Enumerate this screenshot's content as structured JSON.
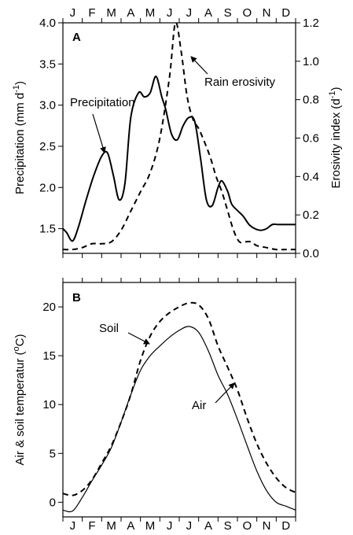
{
  "months": [
    "J",
    "F",
    "M",
    "A",
    "M",
    "J",
    "J",
    "A",
    "S",
    "O",
    "N",
    "D"
  ],
  "chart_data": [
    {
      "type": "line",
      "panel_label": "A",
      "ylabel": "Precipitation (mm d",
      "ylabel_sup": "-1",
      "ylabel_close": ")",
      "ylim": [
        1.2,
        4.0
      ],
      "y_ticks": [
        "1.5",
        "2.0",
        "2.5",
        "3.0",
        "3.5",
        "4.0"
      ],
      "y2label": "Erosivity index (d",
      "y2label_sup": "-1",
      "y2label_close": ")",
      "y2lim": [
        0.0,
        1.2
      ],
      "y2_ticks": [
        "0.0",
        "0.2",
        "0.4",
        "0.6",
        "0.8",
        "1.0",
        "1.2"
      ],
      "xlim": [
        0,
        12
      ],
      "series": [
        {
          "name": "Precipitation",
          "axis": "left",
          "style": "solid",
          "x": [
            0,
            0.2,
            0.5,
            0.8,
            1.2,
            1.6,
            2.0,
            2.3,
            2.6,
            2.9,
            3.2,
            3.5,
            3.9,
            4.2,
            4.5,
            4.8,
            5.1,
            5.3,
            5.6,
            5.9,
            6.2,
            6.5,
            6.8,
            7.1,
            7.4,
            7.7,
            8.0,
            8.2,
            8.5,
            8.7,
            9.0,
            9.3,
            9.6,
            9.9,
            10.2,
            10.5,
            10.8,
            11.1,
            11.4,
            11.7,
            12.0
          ],
          "values": [
            1.5,
            1.45,
            1.35,
            1.52,
            1.85,
            2.15,
            2.38,
            2.42,
            2.15,
            1.85,
            2.05,
            2.85,
            3.15,
            3.1,
            3.15,
            3.35,
            3.1,
            2.95,
            2.65,
            2.58,
            2.75,
            2.85,
            2.8,
            2.35,
            1.85,
            1.78,
            2.0,
            2.08,
            1.95,
            1.8,
            1.72,
            1.65,
            1.55,
            1.5,
            1.48,
            1.5,
            1.55,
            1.55,
            1.55,
            1.55,
            1.55
          ]
        },
        {
          "name": "Rain erosivity",
          "axis": "right",
          "style": "dashed",
          "x": [
            0,
            0.5,
            1.0,
            1.5,
            2.0,
            2.5,
            3.0,
            3.5,
            4.0,
            4.5,
            5.0,
            5.5,
            5.8,
            6.1,
            6.4,
            6.7,
            7.0,
            7.3,
            7.6,
            7.9,
            8.2,
            8.5,
            8.8,
            9.1,
            9.4,
            9.7,
            10.0,
            10.5,
            11.0,
            11.5,
            12.0
          ],
          "values": [
            0.02,
            0.02,
            0.03,
            0.05,
            0.05,
            0.06,
            0.12,
            0.22,
            0.32,
            0.42,
            0.6,
            0.92,
            1.2,
            1.05,
            0.82,
            0.7,
            0.65,
            0.58,
            0.5,
            0.4,
            0.32,
            0.22,
            0.12,
            0.06,
            0.06,
            0.06,
            0.04,
            0.03,
            0.02,
            0.02,
            0.02
          ]
        }
      ],
      "annotations": [
        {
          "text": "Precipitation",
          "points_to": "Precipitation"
        },
        {
          "text": "Rain erosivity",
          "points_to": "Rain erosivity"
        }
      ]
    },
    {
      "type": "line",
      "panel_label": "B",
      "ylabel": "Air & soil temperatur (",
      "ylabel_sup": "o",
      "ylabel_close": "C)",
      "ylim": [
        -1.5,
        22.5
      ],
      "y_ticks": [
        "0",
        "5",
        "10",
        "15",
        "20"
      ],
      "xlim": [
        0,
        12
      ],
      "series": [
        {
          "name": "Soil",
          "style": "dashed",
          "x": [
            0,
            0.5,
            1.0,
            1.5,
            2.0,
            2.5,
            3.0,
            3.5,
            4.0,
            4.5,
            5.0,
            5.5,
            6.0,
            6.5,
            7.0,
            7.5,
            8.0,
            8.5,
            9.0,
            9.5,
            10.0,
            10.5,
            11.0,
            11.5,
            12.0
          ],
          "values": [
            0.9,
            0.7,
            1.2,
            2.3,
            4.0,
            5.8,
            8.2,
            11.0,
            14.5,
            17.0,
            18.5,
            19.4,
            20.0,
            20.4,
            20.2,
            18.8,
            16.0,
            13.8,
            11.5,
            8.6,
            6.0,
            4.0,
            2.5,
            1.5,
            1.0
          ]
        },
        {
          "name": "Air",
          "style": "solid",
          "x": [
            0,
            0.5,
            1.0,
            1.5,
            2.0,
            2.5,
            3.0,
            3.5,
            4.0,
            4.5,
            5.0,
            5.5,
            6.0,
            6.5,
            7.0,
            7.5,
            8.0,
            8.5,
            9.0,
            9.5,
            10.0,
            10.5,
            11.0,
            11.5,
            12.0
          ],
          "values": [
            -0.8,
            -0.9,
            0.5,
            2.2,
            3.8,
            5.6,
            8.2,
            11.0,
            13.5,
            15.0,
            16.0,
            16.9,
            17.6,
            18.0,
            17.4,
            15.5,
            13.0,
            11.0,
            8.5,
            5.8,
            3.2,
            1.2,
            0.0,
            -0.4,
            -0.8
          ]
        }
      ],
      "annotations": [
        {
          "text": "Soil",
          "points_to": "Soil"
        },
        {
          "text": "Air",
          "points_to": "Air"
        }
      ]
    }
  ]
}
